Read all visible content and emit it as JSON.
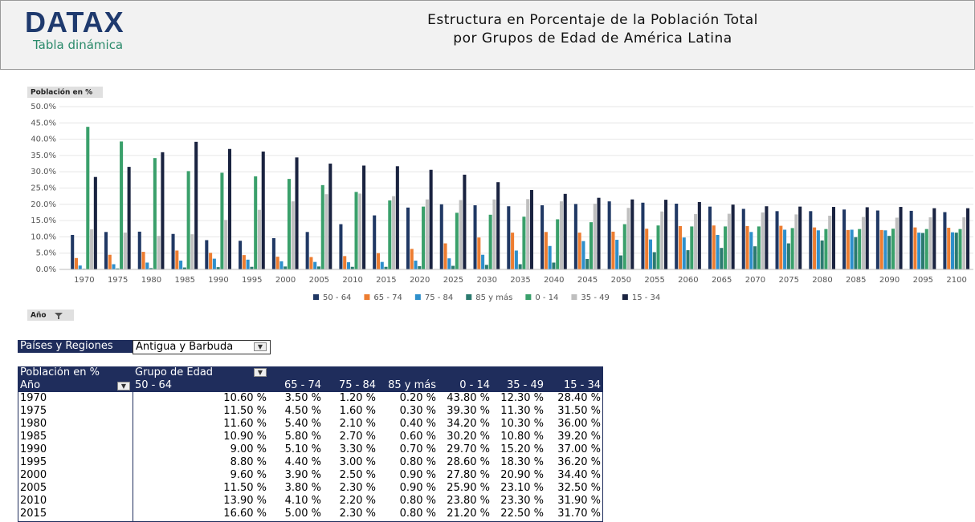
{
  "header": {
    "logo": "DATAX",
    "subtitle": "Tabla dinámica"
  },
  "chart_data": {
    "type": "bar",
    "title": [
      "Estructura en Porcentaje de la Población Total",
      "por Grupos de Edad de América Latina"
    ],
    "y_button": "Población en %",
    "x_button": "Año",
    "categories": [
      "1970",
      "1975",
      "1980",
      "1985",
      "1990",
      "1995",
      "2000",
      "2005",
      "2010",
      "2015",
      "2020",
      "2025",
      "2030",
      "2035",
      "2040",
      "2045",
      "2050",
      "2055",
      "2060",
      "2065",
      "2070",
      "2075",
      "2080",
      "2085",
      "2090",
      "2095",
      "2100"
    ],
    "series": [
      {
        "name": "50 - 64",
        "color": "#203864",
        "values": [
          10.6,
          11.5,
          11.6,
          10.9,
          9.0,
          8.8,
          9.6,
          11.5,
          13.9,
          16.6,
          19.0,
          20.0,
          19.7,
          19.4,
          19.7,
          20.1,
          20.9,
          20.5,
          20.2,
          19.3,
          18.6,
          17.9,
          17.9,
          18.4,
          18.1,
          18.0,
          17.6
        ]
      },
      {
        "name": "65 - 74",
        "color": "#ed7d31",
        "values": [
          3.5,
          4.5,
          5.4,
          5.8,
          5.1,
          4.4,
          3.9,
          3.8,
          4.1,
          5.0,
          6.3,
          8.0,
          9.8,
          11.3,
          11.5,
          11.3,
          11.6,
          12.5,
          13.3,
          13.5,
          13.3,
          13.4,
          12.9,
          12.1,
          12.1,
          12.9,
          12.8
        ]
      },
      {
        "name": "75 - 84",
        "color": "#2e8fcb",
        "values": [
          1.2,
          1.6,
          2.1,
          2.7,
          3.3,
          3.0,
          2.5,
          2.3,
          2.2,
          2.3,
          2.7,
          3.4,
          4.5,
          5.8,
          7.2,
          8.7,
          9.1,
          9.2,
          9.8,
          10.6,
          11.5,
          12.2,
          12.0,
          12.2,
          12.0,
          11.3,
          11.4
        ]
      },
      {
        "name": "85 y más",
        "color": "#2b7a6f",
        "values": [
          0.2,
          0.3,
          0.4,
          0.6,
          0.7,
          0.8,
          0.9,
          0.9,
          0.8,
          0.8,
          1.0,
          1.1,
          1.4,
          1.6,
          2.1,
          3.2,
          4.3,
          5.3,
          5.9,
          6.6,
          7.1,
          8.0,
          8.9,
          9.9,
          10.3,
          11.2,
          11.3
        ]
      },
      {
        "name": "0 - 14",
        "color": "#3aa06b",
        "values": [
          43.8,
          39.3,
          34.2,
          30.2,
          29.7,
          28.6,
          27.8,
          25.9,
          23.8,
          21.2,
          19.3,
          17.4,
          16.8,
          16.2,
          15.4,
          14.5,
          13.9,
          13.5,
          13.2,
          13.2,
          13.2,
          12.7,
          12.4,
          12.4,
          12.5,
          12.4,
          12.4
        ]
      },
      {
        "name": "35 - 49",
        "color": "#bfbfbf",
        "values": [
          12.3,
          11.3,
          10.3,
          10.8,
          15.2,
          18.3,
          20.9,
          23.1,
          23.3,
          22.5,
          21.5,
          21.3,
          21.5,
          21.6,
          20.9,
          20.2,
          18.9,
          17.8,
          17.0,
          17.1,
          17.5,
          16.9,
          16.5,
          16.1,
          15.9,
          16.0,
          16.0
        ]
      },
      {
        "name": "15 - 34",
        "color": "#1a2340",
        "values": [
          28.4,
          31.5,
          36.0,
          39.2,
          37.0,
          36.2,
          34.4,
          32.5,
          31.9,
          31.7,
          30.6,
          29.1,
          26.8,
          24.4,
          23.2,
          22.0,
          21.5,
          21.4,
          20.7,
          19.9,
          19.4,
          19.3,
          19.2,
          19.1,
          19.2,
          18.8,
          18.8
        ]
      }
    ],
    "ylim": [
      0,
      50
    ],
    "yticks": [
      {
        "value": 0,
        "label": "0.0%"
      },
      {
        "value": 5,
        "label": "5.0%"
      },
      {
        "value": 10,
        "label": "10.0%"
      },
      {
        "value": 15,
        "label": "15.0%"
      },
      {
        "value": 20,
        "label": "20.0%"
      },
      {
        "value": 25,
        "label": "25.0%"
      },
      {
        "value": 30,
        "label": "30.0%"
      },
      {
        "value": 35,
        "label": "35.0%"
      },
      {
        "value": 40,
        "label": "40.0%"
      },
      {
        "value": 45,
        "label": "45.0%"
      },
      {
        "value": 50,
        "label": "50.0%"
      }
    ],
    "grid": true,
    "legend": "bottom"
  },
  "filter": {
    "label": "Países y Regiones",
    "value": "Antigua y Barbuda"
  },
  "table": {
    "corner": "Población en %",
    "group_label": "Grupo de Edad",
    "row_label": "Año",
    "columns": [
      "50 - 64",
      "65 - 74",
      "75 - 84",
      "85 y más",
      "0 - 14",
      "35 - 49",
      "15 - 34"
    ],
    "rows": [
      [
        "1970",
        "10.60 %",
        "3.50 %",
        "1.20 %",
        "0.20 %",
        "43.80 %",
        "12.30 %",
        "28.40 %"
      ],
      [
        "1975",
        "11.50 %",
        "4.50 %",
        "1.60 %",
        "0.30 %",
        "39.30 %",
        "11.30 %",
        "31.50 %"
      ],
      [
        "1980",
        "11.60 %",
        "5.40 %",
        "2.10 %",
        "0.40 %",
        "34.20 %",
        "10.30 %",
        "36.00 %"
      ],
      [
        "1985",
        "10.90 %",
        "5.80 %",
        "2.70 %",
        "0.60 %",
        "30.20 %",
        "10.80 %",
        "39.20 %"
      ],
      [
        "1990",
        "9.00 %",
        "5.10 %",
        "3.30 %",
        "0.70 %",
        "29.70 %",
        "15.20 %",
        "37.00 %"
      ],
      [
        "1995",
        "8.80 %",
        "4.40 %",
        "3.00 %",
        "0.80 %",
        "28.60 %",
        "18.30 %",
        "36.20 %"
      ],
      [
        "2000",
        "9.60 %",
        "3.90 %",
        "2.50 %",
        "0.90 %",
        "27.80 %",
        "20.90 %",
        "34.40 %"
      ],
      [
        "2005",
        "11.50 %",
        "3.80 %",
        "2.30 %",
        "0.90 %",
        "25.90 %",
        "23.10 %",
        "32.50 %"
      ],
      [
        "2010",
        "13.90 %",
        "4.10 %",
        "2.20 %",
        "0.80 %",
        "23.80 %",
        "23.30 %",
        "31.90 %"
      ],
      [
        "2015",
        "16.60 %",
        "5.00 %",
        "2.30 %",
        "0.80 %",
        "21.20 %",
        "22.50 %",
        "31.70 %"
      ]
    ]
  }
}
